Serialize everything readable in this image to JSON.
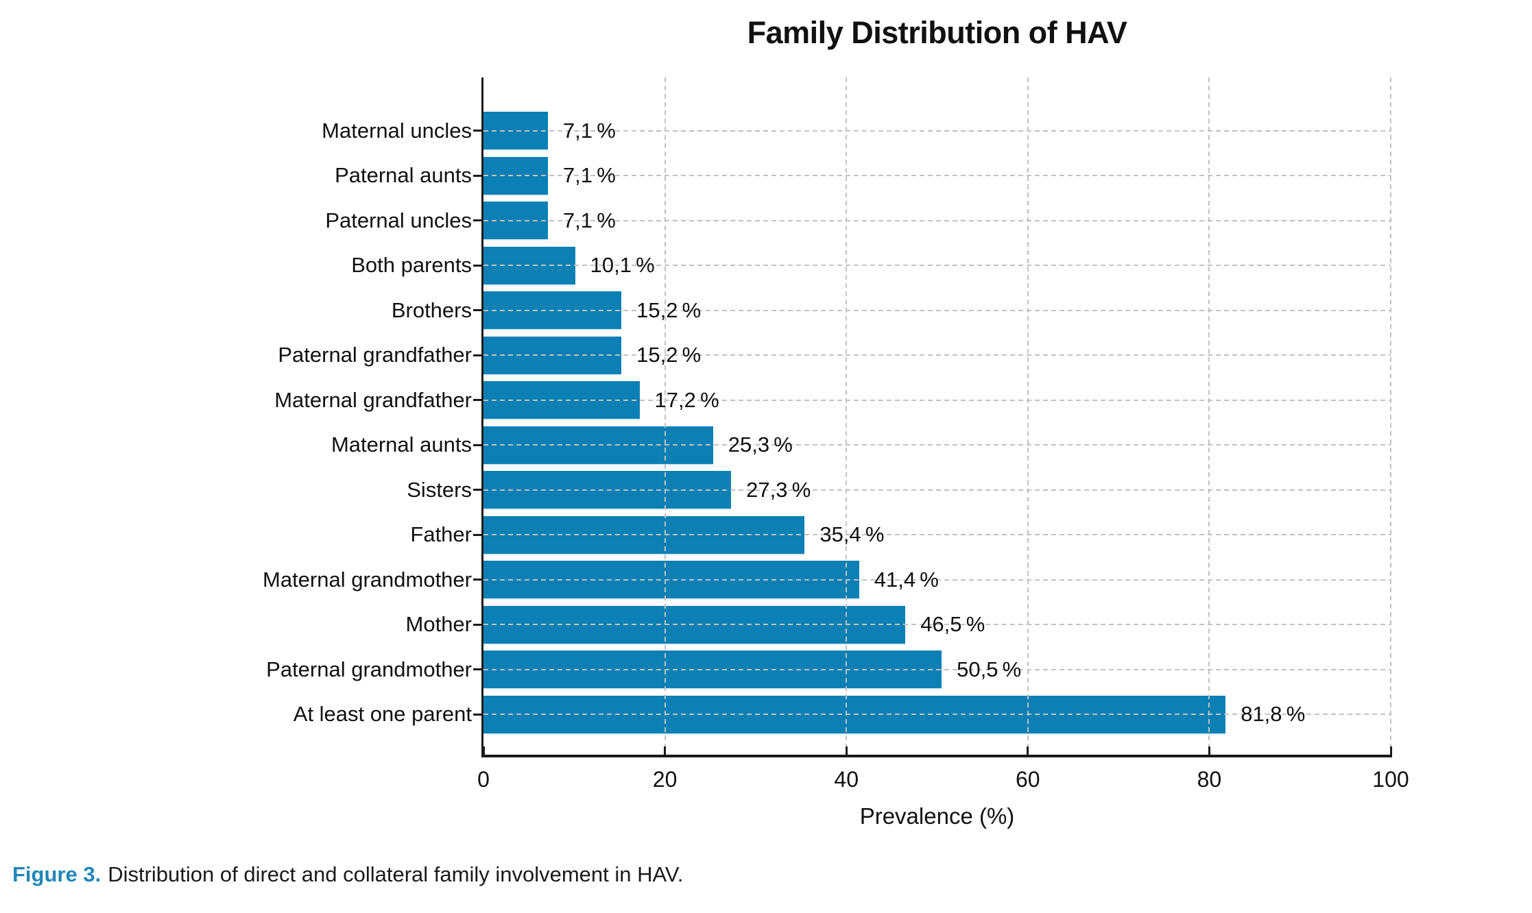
{
  "figure": {
    "caption_label": "Figure 3.",
    "caption_text": "Distribution of direct and collateral family involvement in HAV."
  },
  "chart_data": {
    "type": "bar",
    "orientation": "horizontal",
    "title": "Family Distribution of HAV",
    "xlabel": "Prevalence (%)",
    "ylabel": "",
    "xlim": [
      0,
      100
    ],
    "xticks": [
      0,
      20,
      40,
      60,
      80,
      100
    ],
    "grid": "dashed, horizontal at each category and vertical at each x tick, drawn over bars",
    "legend": "none",
    "categories": [
      "Maternal uncles",
      "Paternal aunts",
      "Paternal uncles",
      "Both parents",
      "Brothers",
      "Paternal grandfather",
      "Maternal grandfather",
      "Maternal aunts",
      "Sisters",
      "Father",
      "Maternal grandmother",
      "Mother",
      "Paternal grandmother",
      "At least one parent"
    ],
    "values": [
      7.1,
      7.1,
      7.1,
      10.1,
      15.2,
      15.2,
      17.2,
      25.3,
      27.3,
      35.4,
      41.4,
      46.5,
      50.5,
      81.8
    ],
    "value_labels": [
      "7,1 %",
      "7,1 %",
      "7,1 %",
      "10,1 %",
      "15,2 %",
      "15,2 %",
      "17,2 %",
      "25,3 %",
      "27,3 %",
      "35,4 %",
      "41,4 %",
      "46,5 %",
      "50,5 %",
      "81,8 %"
    ]
  },
  "colors": {
    "bar": "#0c80b5",
    "grid": "#c2c2c2",
    "axis": "#1a1a1a",
    "text": "#1a1a1a",
    "caption_accent": "#2187b8"
  }
}
